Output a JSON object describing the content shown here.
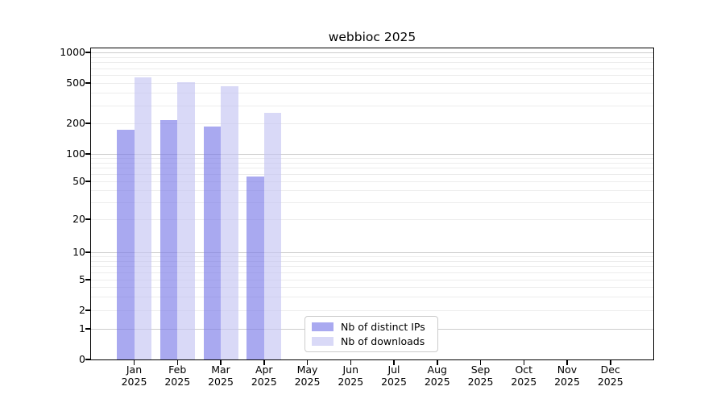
{
  "figure_title": "webbioc 2025",
  "chart_data": {
    "type": "bar",
    "title": "webbioc 2025",
    "categories": [
      "Jan",
      "Feb",
      "Mar",
      "Apr",
      "May",
      "Jun",
      "Jul",
      "Aug",
      "Sep",
      "Oct",
      "Nov",
      "Dec"
    ],
    "x_year_label": "2025",
    "series": [
      {
        "name": "Nb of distinct IPs",
        "color": "#a9a9f0",
        "values": [
          172,
          217,
          186,
          57,
          0,
          0,
          0,
          0,
          0,
          0,
          0,
          0
        ]
      },
      {
        "name": "Nb of downloads",
        "color": "#d9d9f7",
        "values": [
          566,
          510,
          467,
          255,
          0,
          0,
          0,
          0,
          0,
          0,
          0,
          0
        ]
      }
    ],
    "y_ticks": [
      0,
      1,
      2,
      5,
      10,
      20,
      50,
      100,
      200,
      500,
      1000
    ],
    "ylim": [
      0,
      1000
    ],
    "y_scale": "log-like (labeled ticks 1-2-5 per decade, 0 baseline)",
    "grid": "major and minor horizontal gridlines",
    "legend_position": "lower center, inside plot"
  },
  "colors": {
    "bar_distinct_ips": "#a9a9f0",
    "bar_downloads": "#d9d9f7",
    "grid_major": "#cccccc",
    "grid_minor": "#ececec",
    "axis": "#000000",
    "legend_border": "#cccccc",
    "background": "#ffffff",
    "text": "#000000"
  }
}
